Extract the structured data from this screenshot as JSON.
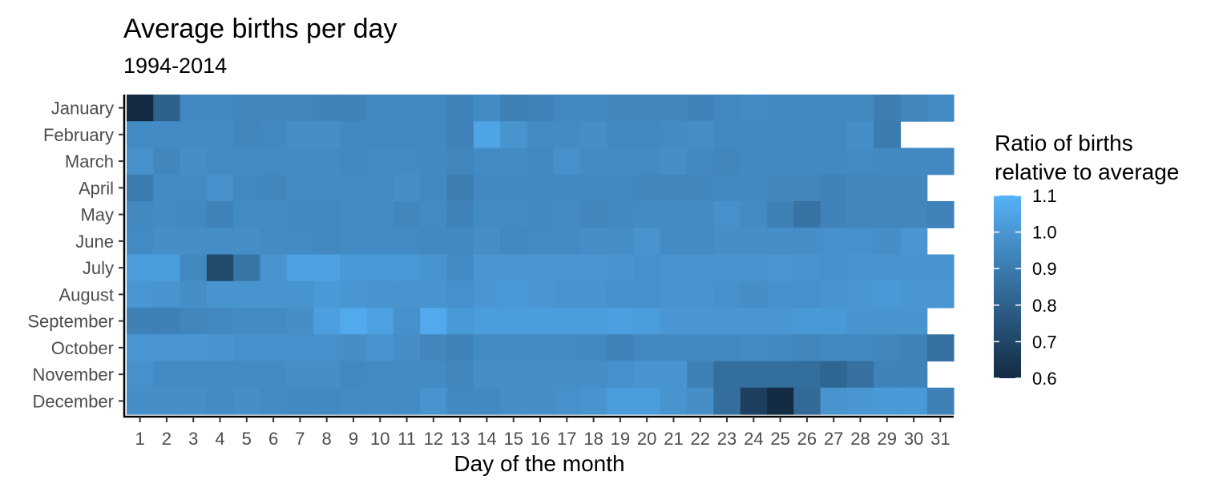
{
  "chart_data": {
    "type": "heatmap",
    "title": "Average births per day",
    "subtitle": "1994-2014",
    "xlabel": "Day of the month",
    "ylabel": "",
    "x": [
      "1",
      "2",
      "3",
      "4",
      "5",
      "6",
      "7",
      "8",
      "9",
      "10",
      "11",
      "12",
      "13",
      "14",
      "15",
      "16",
      "17",
      "18",
      "19",
      "20",
      "21",
      "22",
      "23",
      "24",
      "25",
      "26",
      "27",
      "28",
      "29",
      "30",
      "31"
    ],
    "y": [
      "January",
      "February",
      "March",
      "April",
      "May",
      "June",
      "July",
      "August",
      "September",
      "October",
      "November",
      "December"
    ],
    "values": [
      [
        0.6,
        0.8,
        0.95,
        0.95,
        0.94,
        0.94,
        0.94,
        0.93,
        0.93,
        0.95,
        0.95,
        0.95,
        0.93,
        0.96,
        0.92,
        0.93,
        0.95,
        0.95,
        0.94,
        0.94,
        0.94,
        0.93,
        0.95,
        0.96,
        0.95,
        0.95,
        0.95,
        0.95,
        0.91,
        0.94,
        0.96
      ],
      [
        0.96,
        0.96,
        0.96,
        0.96,
        0.94,
        0.95,
        0.97,
        0.97,
        0.95,
        0.95,
        0.95,
        0.95,
        0.93,
        1.05,
        0.99,
        0.96,
        0.96,
        0.97,
        0.95,
        0.95,
        0.96,
        0.97,
        0.95,
        0.95,
        0.95,
        0.95,
        0.95,
        0.97,
        0.9,
        null,
        null
      ],
      [
        0.98,
        0.94,
        0.97,
        0.96,
        0.96,
        0.96,
        0.96,
        0.96,
        0.95,
        0.96,
        0.96,
        0.95,
        0.94,
        0.96,
        0.96,
        0.95,
        0.98,
        0.96,
        0.96,
        0.96,
        0.97,
        0.95,
        0.94,
        0.95,
        0.95,
        0.95,
        0.95,
        0.96,
        0.95,
        0.95,
        0.95
      ],
      [
        0.9,
        0.96,
        0.96,
        0.98,
        0.95,
        0.94,
        0.96,
        0.96,
        0.96,
        0.96,
        0.97,
        0.95,
        0.91,
        0.95,
        0.95,
        0.95,
        0.95,
        0.95,
        0.95,
        0.94,
        0.94,
        0.94,
        0.95,
        0.95,
        0.94,
        0.94,
        0.93,
        0.94,
        0.94,
        0.94,
        null
      ],
      [
        0.95,
        0.96,
        0.95,
        0.93,
        0.96,
        0.96,
        0.95,
        0.95,
        0.96,
        0.96,
        0.94,
        0.96,
        0.93,
        0.96,
        0.96,
        0.95,
        0.96,
        0.94,
        0.95,
        0.96,
        0.96,
        0.96,
        0.98,
        0.96,
        0.92,
        0.87,
        0.93,
        0.94,
        0.94,
        0.94,
        0.93
      ],
      [
        0.96,
        0.97,
        0.97,
        0.97,
        0.97,
        0.96,
        0.96,
        0.95,
        0.96,
        0.96,
        0.96,
        0.95,
        0.95,
        0.97,
        0.95,
        0.96,
        0.96,
        0.97,
        0.97,
        0.99,
        0.96,
        0.96,
        0.97,
        0.97,
        0.97,
        0.97,
        0.98,
        0.98,
        0.97,
        1.0,
        null
      ],
      [
        1.02,
        1.02,
        0.95,
        0.72,
        0.88,
        0.99,
        1.04,
        1.04,
        1.01,
        1.01,
        1.01,
        0.99,
        0.96,
        1.0,
        1.0,
        1.0,
        1.0,
        1.0,
        0.99,
        0.98,
        0.99,
        0.99,
        0.99,
        0.99,
        1.0,
        0.99,
        0.98,
        0.99,
        0.99,
        0.99,
        0.99
      ],
      [
        1.0,
        0.99,
        0.97,
        0.99,
        0.99,
        0.99,
        0.99,
        1.01,
        1.0,
        0.99,
        0.99,
        0.99,
        0.98,
        1.0,
        1.01,
        1.0,
        0.99,
        0.99,
        0.98,
        0.98,
        0.99,
        0.99,
        0.98,
        0.97,
        0.98,
        0.98,
        0.99,
        1.0,
        1.01,
        1.0,
        1.0
      ],
      [
        0.92,
        0.92,
        0.94,
        0.95,
        0.96,
        0.96,
        0.97,
        1.03,
        1.07,
        1.04,
        0.98,
        1.07,
        1.01,
        1.02,
        1.02,
        1.02,
        1.02,
        1.02,
        1.03,
        1.02,
        1.0,
        1.0,
        1.0,
        1.0,
        1.0,
        1.01,
        1.01,
        0.99,
        0.99,
        0.99,
        null
      ],
      [
        1.0,
        1.0,
        1.0,
        0.99,
        0.98,
        0.98,
        0.98,
        0.98,
        0.97,
        0.99,
        0.97,
        0.94,
        0.93,
        0.96,
        0.96,
        0.96,
        0.96,
        0.95,
        0.93,
        0.95,
        0.95,
        0.95,
        0.95,
        0.96,
        0.95,
        0.94,
        0.95,
        0.95,
        0.94,
        0.93,
        0.86
      ],
      [
        0.98,
        0.96,
        0.96,
        0.96,
        0.96,
        0.96,
        0.97,
        0.97,
        0.95,
        0.96,
        0.96,
        0.96,
        0.94,
        0.97,
        0.97,
        0.97,
        0.97,
        0.97,
        0.98,
        0.99,
        0.99,
        0.92,
        0.85,
        0.85,
        0.85,
        0.85,
        0.82,
        0.86,
        0.93,
        0.93,
        null
      ],
      [
        0.97,
        0.97,
        0.97,
        0.96,
        0.97,
        0.96,
        0.95,
        0.95,
        0.96,
        0.96,
        0.96,
        0.99,
        0.95,
        0.95,
        0.97,
        0.97,
        0.98,
        0.99,
        1.02,
        1.02,
        0.99,
        0.97,
        0.85,
        0.68,
        0.6,
        0.83,
        0.99,
        1.0,
        1.01,
        1.01,
        0.92
      ]
    ],
    "legend": {
      "title_lines": [
        "Ratio of births",
        "relative to average"
      ],
      "ticks": [
        "1.1",
        "1.0",
        "0.9",
        "0.8",
        "0.7",
        "0.6"
      ],
      "placement": "right"
    },
    "color_scale": {
      "low": "#132b43",
      "high": "#56b1f7",
      "domain": [
        0.6,
        1.1
      ]
    },
    "grid": false
  }
}
